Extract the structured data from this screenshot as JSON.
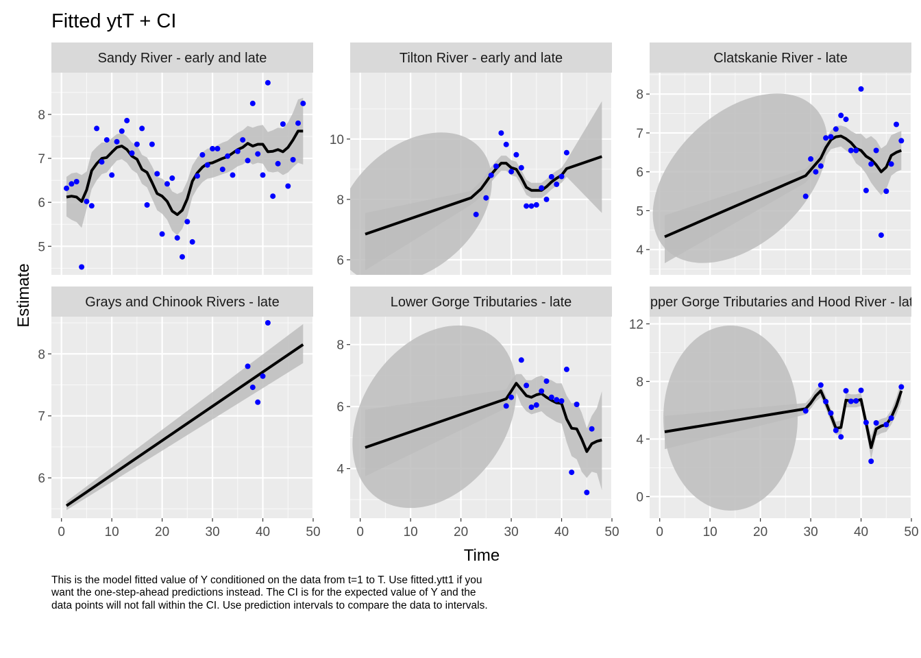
{
  "title": "Fitted ytT + CI",
  "xlabel": "Time",
  "ylabel": "Estimate",
  "caption": "This is the model fitted value of Y conditioned on the data from t=1 to T. Use fitted.ytt1 if you want the one-step-ahead predictions instead. The CI is for the expected value of Y and the data points will not fall within the CI. Use prediction intervals to compare the data to intervals.",
  "colors": {
    "panel_bg": "#ebebeb",
    "strip_bg": "#d9d9d9",
    "grid": "#ffffff",
    "ribbon": "#bdbdbd",
    "line": "#000000",
    "points": "#0000ff",
    "axis_text": "#4d4d4d"
  },
  "chart_data": {
    "type": "line",
    "facet_layout": "2 rows x 3 columns, shared x axis, free y axes",
    "xlim": [
      -2,
      50
    ],
    "x_ticks": [
      0,
      10,
      20,
      30,
      40,
      50
    ],
    "grid": true,
    "legend": "none",
    "panels": [
      {
        "strip": "Sandy River - early and late",
        "ylim": [
          4.35,
          8.95
        ],
        "y_ticks": [
          5,
          6,
          7,
          8
        ],
        "fit": {
          "x": [
            1,
            2,
            3,
            4,
            5,
            6,
            7,
            8,
            9,
            10,
            11,
            12,
            13,
            14,
            15,
            16,
            17,
            18,
            19,
            20,
            21,
            22,
            23,
            24,
            25,
            26,
            27,
            28,
            29,
            30,
            31,
            32,
            33,
            34,
            35,
            36,
            37,
            38,
            39,
            40,
            41,
            42,
            43,
            44,
            45,
            46,
            47,
            48
          ],
          "y": [
            6.12,
            6.14,
            6.12,
            6.02,
            6.28,
            6.72,
            6.88,
            7.0,
            7.02,
            7.14,
            7.25,
            7.28,
            7.2,
            7.05,
            6.98,
            6.75,
            6.68,
            6.45,
            6.2,
            6.14,
            6.02,
            5.8,
            5.72,
            5.82,
            6.08,
            6.48,
            6.67,
            6.8,
            6.88,
            6.9,
            6.95,
            7.0,
            7.04,
            7.12,
            7.2,
            7.25,
            7.34,
            7.28,
            7.32,
            7.32,
            7.15,
            7.16,
            7.2,
            7.15,
            7.25,
            7.42,
            7.62,
            7.62
          ]
        },
        "ci_lower": [
          5.68,
          5.6,
          5.55,
          5.42,
          5.85,
          6.3,
          6.5,
          6.64,
          6.68,
          6.82,
          6.95,
          6.98,
          6.9,
          6.74,
          6.66,
          6.42,
          6.34,
          6.08,
          5.82,
          5.74,
          5.6,
          5.35,
          5.25,
          5.4,
          5.68,
          6.12,
          6.32,
          6.46,
          6.54,
          6.56,
          6.6,
          6.64,
          6.68,
          6.74,
          6.82,
          6.86,
          6.94,
          6.86,
          6.9,
          6.88,
          6.7,
          6.68,
          6.7,
          6.62,
          6.68,
          6.8,
          6.9,
          6.86
        ],
        "ci_upper": [
          6.58,
          6.66,
          6.68,
          6.62,
          6.7,
          7.14,
          7.26,
          7.36,
          7.36,
          7.46,
          7.55,
          7.58,
          7.5,
          7.36,
          7.3,
          7.08,
          7.02,
          6.82,
          6.58,
          6.54,
          6.44,
          6.25,
          6.19,
          6.24,
          6.48,
          6.84,
          7.02,
          7.14,
          7.22,
          7.24,
          7.3,
          7.36,
          7.4,
          7.5,
          7.58,
          7.64,
          7.74,
          7.7,
          7.74,
          7.76,
          7.6,
          7.64,
          7.7,
          7.68,
          7.82,
          8.04,
          8.34,
          8.38
        ],
        "points": {
          "x": [
            1,
            2,
            3,
            4,
            5,
            6,
            7,
            8,
            9,
            10,
            11,
            12,
            13,
            14,
            15,
            16,
            17,
            18,
            19,
            20,
            21,
            22,
            23,
            24,
            25,
            26,
            27,
            28,
            29,
            30,
            31,
            32,
            33,
            34,
            35,
            36,
            37,
            38,
            39,
            40,
            41,
            42,
            43,
            44,
            45,
            46,
            47,
            48
          ],
          "y": [
            6.32,
            6.42,
            6.47,
            4.53,
            6.02,
            5.92,
            7.68,
            6.92,
            7.42,
            6.62,
            7.38,
            7.62,
            7.86,
            7.12,
            7.32,
            7.68,
            5.94,
            7.32,
            6.65,
            5.28,
            6.42,
            6.55,
            5.19,
            4.76,
            5.56,
            5.1,
            6.6,
            7.08,
            6.85,
            7.22,
            7.22,
            6.75,
            7.05,
            6.62,
            7.16,
            7.42,
            6.95,
            8.25,
            7.1,
            6.62,
            8.72,
            6.14,
            6.88,
            7.78,
            6.37,
            6.97,
            7.8,
            8.25
          ]
        }
      },
      {
        "strip": "Tilton River - early and late",
        "ylim": [
          5.5,
          12.2
        ],
        "y_ticks": [
          6,
          8,
          10
        ],
        "fit": {
          "x": [
            1,
            22,
            23,
            24,
            25,
            26,
            27,
            28,
            29,
            30,
            31,
            32,
            33,
            34,
            35,
            36,
            37,
            38,
            39,
            40,
            41,
            48
          ],
          "y": [
            6.85,
            8.05,
            8.2,
            8.35,
            8.58,
            8.82,
            9.02,
            9.2,
            9.2,
            9.05,
            9.0,
            8.72,
            8.4,
            8.3,
            8.3,
            8.3,
            8.42,
            8.58,
            8.7,
            8.8,
            9.02,
            9.42
          ]
        },
        "ci_lower": [
          5.65,
          7.82,
          7.95,
          8.1,
          8.33,
          8.57,
          8.77,
          8.95,
          8.95,
          8.8,
          8.75,
          8.47,
          8.15,
          8.05,
          8.05,
          8.05,
          8.17,
          8.33,
          8.45,
          8.55,
          8.75,
          7.55
        ],
        "ci_upper": [
          7.55,
          8.28,
          8.45,
          8.6,
          8.83,
          9.07,
          9.27,
          9.45,
          9.45,
          9.3,
          9.25,
          8.97,
          8.65,
          8.55,
          8.55,
          8.55,
          8.67,
          8.83,
          8.95,
          9.05,
          9.3,
          11.25
        ],
        "ci_ellipse": {
          "center_x": 13,
          "center_y": 6.95,
          "note": "wide uncertainty region over the unobserved years"
        },
        "points": {
          "x": [
            23,
            25,
            26,
            27,
            28,
            29,
            30,
            31,
            32,
            33,
            34,
            35,
            36,
            37,
            38,
            39,
            40,
            41
          ],
          "y": [
            7.5,
            8.05,
            8.8,
            9.1,
            10.2,
            9.82,
            8.92,
            9.48,
            9.05,
            7.78,
            7.78,
            7.82,
            8.38,
            8.0,
            8.75,
            8.5,
            8.76,
            9.55
          ]
        }
      },
      {
        "strip": "Clatskanie River - late",
        "ylim": [
          3.35,
          8.55
        ],
        "y_ticks": [
          4,
          5,
          6,
          7,
          8
        ],
        "fit": {
          "x": [
            1,
            29,
            30,
            31,
            32,
            33,
            34,
            35,
            36,
            37,
            38,
            39,
            40,
            41,
            42,
            43,
            44,
            45,
            46,
            47,
            48
          ],
          "y": [
            4.33,
            5.9,
            6.05,
            6.2,
            6.35,
            6.62,
            6.82,
            6.9,
            6.92,
            6.85,
            6.75,
            6.6,
            6.55,
            6.4,
            6.32,
            6.18,
            6.0,
            6.12,
            6.42,
            6.5,
            6.55
          ]
        },
        "ci_lower": [
          3.65,
          5.72,
          5.88,
          6.02,
          6.15,
          6.4,
          6.58,
          6.62,
          6.65,
          6.55,
          6.45,
          6.22,
          6.12,
          5.95,
          5.72,
          5.55,
          5.4,
          5.55,
          5.9,
          6.0,
          6.05
        ],
        "ci_upper": [
          4.88,
          6.08,
          6.22,
          6.38,
          6.55,
          6.84,
          7.06,
          7.18,
          7.19,
          7.15,
          7.05,
          6.98,
          6.98,
          6.85,
          6.92,
          6.81,
          6.6,
          6.69,
          6.94,
          7.0,
          7.05
        ],
        "ci_ellipse": {
          "center_x": 15,
          "center_y": 5.45,
          "note": "wide uncertainty region over the unobserved years"
        },
        "points": {
          "x": [
            29,
            30,
            31,
            32,
            33,
            34,
            35,
            36,
            37,
            38,
            39,
            40,
            41,
            42,
            43,
            44,
            45,
            46,
            47,
            48
          ],
          "y": [
            5.37,
            6.33,
            6.0,
            6.15,
            6.87,
            6.9,
            7.1,
            7.45,
            7.35,
            6.55,
            6.55,
            8.13,
            5.52,
            6.2,
            6.55,
            4.37,
            5.5,
            6.2,
            7.22,
            6.8
          ]
        }
      },
      {
        "strip": "Grays and Chinook Rivers - late",
        "ylim": [
          5.35,
          8.6
        ],
        "y_ticks": [
          6,
          7,
          8
        ],
        "fit": {
          "x": [
            1,
            48
          ],
          "y": [
            5.55,
            8.15
          ]
        },
        "ci_lower": [
          5.48,
          7.85
        ],
        "ci_upper": [
          5.62,
          8.48
        ],
        "points": {
          "x": [
            37,
            38,
            39,
            40,
            41
          ],
          "y": [
            7.8,
            7.46,
            7.22,
            7.64,
            8.5
          ]
        }
      },
      {
        "strip": "Lower Gorge Tributaries - late",
        "ylim": [
          2.4,
          8.9
        ],
        "y_ticks": [
          4,
          6,
          8
        ],
        "fit": {
          "x": [
            1,
            29,
            30,
            31,
            32,
            33,
            34,
            35,
            36,
            37,
            38,
            39,
            40,
            41,
            42,
            43,
            44,
            45,
            46,
            47,
            48
          ],
          "y": [
            4.68,
            6.25,
            6.5,
            6.75,
            6.55,
            6.35,
            6.3,
            6.38,
            6.42,
            6.3,
            6.2,
            6.12,
            6.1,
            5.6,
            5.3,
            5.28,
            4.95,
            4.55,
            4.8,
            4.88,
            4.92
          ]
        },
        "ci_lower": [
          3.75,
          5.95,
          6.2,
          6.45,
          6.05,
          5.85,
          5.75,
          5.8,
          5.85,
          5.7,
          5.6,
          5.5,
          5.45,
          4.85,
          4.4,
          4.3,
          3.9,
          3.7,
          3.9,
          3.85,
          3.3
        ],
        "ci_upper": [
          5.9,
          6.55,
          6.85,
          7.05,
          7.05,
          6.85,
          6.85,
          6.95,
          7.0,
          6.9,
          6.85,
          6.75,
          6.75,
          6.35,
          6.1,
          6.15,
          5.8,
          5.3,
          5.7,
          5.95,
          6.5
        ],
        "ci_ellipse": {
          "center_x": 15,
          "center_y": 5.5,
          "note": "wide uncertainty region over the unobserved years"
        },
        "points": {
          "x": [
            29,
            30,
            32,
            33,
            34,
            35,
            36,
            37,
            38,
            39,
            40,
            41,
            42,
            43,
            45,
            46
          ],
          "y": [
            6.02,
            6.3,
            7.5,
            6.68,
            5.98,
            6.05,
            6.5,
            6.82,
            6.3,
            6.22,
            6.18,
            7.2,
            3.88,
            6.07,
            3.23,
            5.28
          ]
        }
      },
      {
        "strip": "Upper Gorge Tributaries and Hood River - late",
        "strip_visible_text": "pper Gorge Tributaries and Hood Riv",
        "ylim": [
          -1.5,
          12.5
        ],
        "y_ticks": [
          0,
          4,
          8,
          12
        ],
        "fit": {
          "x": [
            1,
            29,
            30,
            31,
            32,
            33,
            34,
            35,
            36,
            37,
            38,
            39,
            40,
            41,
            42,
            43,
            44,
            45,
            46,
            47,
            48
          ],
          "y": [
            4.5,
            6.1,
            6.5,
            7.0,
            7.35,
            6.55,
            5.65,
            4.75,
            4.8,
            6.7,
            6.65,
            6.65,
            6.75,
            5.1,
            3.4,
            4.7,
            4.9,
            5.0,
            5.5,
            6.3,
            7.35
          ]
        },
        "ci_lower": [
          3.3,
          5.7,
          6.1,
          6.6,
          6.9,
          6.1,
          5.2,
          4.3,
          4.3,
          6.2,
          6.2,
          6.2,
          6.3,
          4.6,
          2.6,
          4.2,
          4.4,
          4.5,
          5.0,
          5.7,
          6.6
        ],
        "ci_upper": [
          5.6,
          6.5,
          6.9,
          7.45,
          7.8,
          7.0,
          6.1,
          5.2,
          5.3,
          7.2,
          7.1,
          7.1,
          7.2,
          5.6,
          4.2,
          5.2,
          5.4,
          5.5,
          6.0,
          6.9,
          8.0
        ],
        "ci_ellipse": {
          "center_x": 15,
          "center_y": 5.0,
          "note": "wide uncertainty region over the unobserved years"
        },
        "points": {
          "x": [
            29,
            32,
            33,
            34,
            35,
            36,
            37,
            38,
            39,
            40,
            41,
            42,
            43,
            45,
            46,
            48
          ],
          "y": [
            5.95,
            7.75,
            6.6,
            5.8,
            4.6,
            4.15,
            7.35,
            6.62,
            6.65,
            7.38,
            5.15,
            2.45,
            5.12,
            5.0,
            5.45,
            7.62
          ]
        }
      }
    ]
  }
}
